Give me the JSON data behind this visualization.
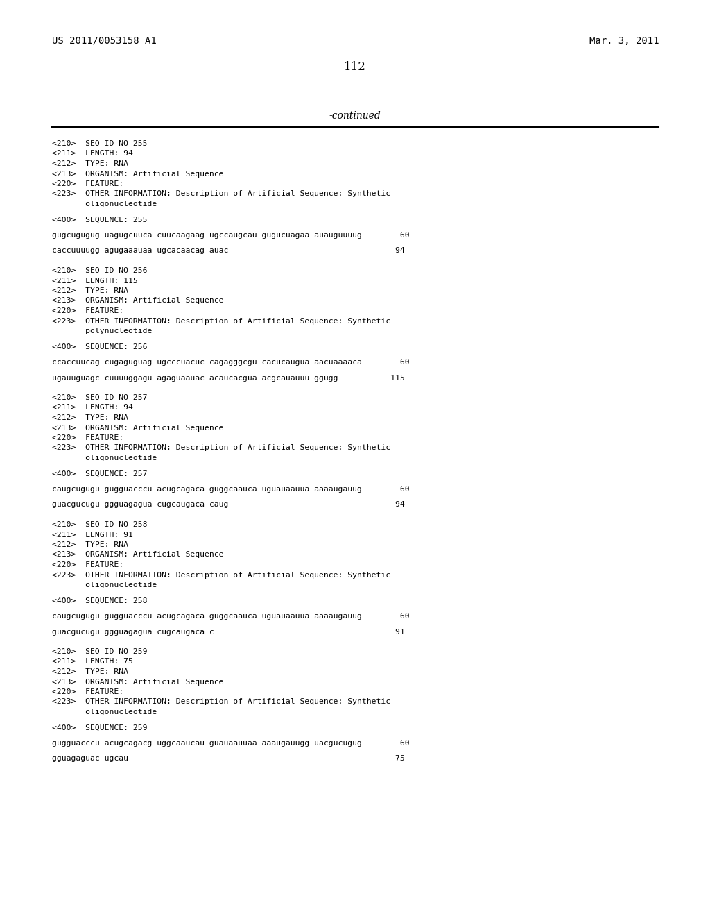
{
  "bg_color": "#ffffff",
  "header_left": "US 2011/0053158 A1",
  "header_right": "Mar. 3, 2011",
  "page_number": "112",
  "continued_text": "-continued",
  "sections": [
    {
      "lines": [
        "<210>  SEQ ID NO 255",
        "<211>  LENGTH: 94",
        "<212>  TYPE: RNA",
        "<213>  ORGANISM: Artificial Sequence",
        "<220>  FEATURE:",
        "<223>  OTHER INFORMATION: Description of Artificial Sequence: Synthetic",
        "       oligonucleotide",
        "",
        "<400>  SEQUENCE: 255",
        "",
        "gugcugugug uagugcuuca cuucaagaag ugccaugcau gugucuagaa auauguuuug        60",
        "",
        "caccuuuugg agugaaauaa ugcacaacag auac                                   94",
        ""
      ]
    },
    {
      "lines": [
        "<210>  SEQ ID NO 256",
        "<211>  LENGTH: 115",
        "<212>  TYPE: RNA",
        "<213>  ORGANISM: Artificial Sequence",
        "<220>  FEATURE:",
        "<223>  OTHER INFORMATION: Description of Artificial Sequence: Synthetic",
        "       polynucleotide",
        "",
        "<400>  SEQUENCE: 256",
        "",
        "ccaccuucag cugaguguag ugcccuacuc cagagggcgu cacucaugua aacuaaaaca        60",
        "",
        "ugauuguagc cuuuuggagu agaguaauac acaucacgua acgcauauuu ggugg           115",
        ""
      ]
    },
    {
      "lines": [
        "<210>  SEQ ID NO 257",
        "<211>  LENGTH: 94",
        "<212>  TYPE: RNA",
        "<213>  ORGANISM: Artificial Sequence",
        "<220>  FEATURE:",
        "<223>  OTHER INFORMATION: Description of Artificial Sequence: Synthetic",
        "       oligonucleotide",
        "",
        "<400>  SEQUENCE: 257",
        "",
        "caugcugugu gugguacccu acugcagaca guggcaauca uguauaauua aaaaugauug        60",
        "",
        "guacgucugu ggguagagua cugcaugaca caug                                   94",
        ""
      ]
    },
    {
      "lines": [
        "<210>  SEQ ID NO 258",
        "<211>  LENGTH: 91",
        "<212>  TYPE: RNA",
        "<213>  ORGANISM: Artificial Sequence",
        "<220>  FEATURE:",
        "<223>  OTHER INFORMATION: Description of Artificial Sequence: Synthetic",
        "       oligonucleotide",
        "",
        "<400>  SEQUENCE: 258",
        "",
        "caugcugugu gugguacccu acugcagaca guggcaauca uguauaauua aaaaugauug        60",
        "",
        "guacgucugu ggguagagua cugcaugaca c                                      91",
        ""
      ]
    },
    {
      "lines": [
        "<210>  SEQ ID NO 259",
        "<211>  LENGTH: 75",
        "<212>  TYPE: RNA",
        "<213>  ORGANISM: Artificial Sequence",
        "<220>  FEATURE:",
        "<223>  OTHER INFORMATION: Description of Artificial Sequence: Synthetic",
        "       oligonucleotide",
        "",
        "<400>  SEQUENCE: 259",
        "",
        "gugguacccu acugcagacg uggcaaucau guauaauuaa aaaugauugg uacgucugug        60",
        "",
        "gguagaguac ugcau                                                        75"
      ]
    }
  ]
}
